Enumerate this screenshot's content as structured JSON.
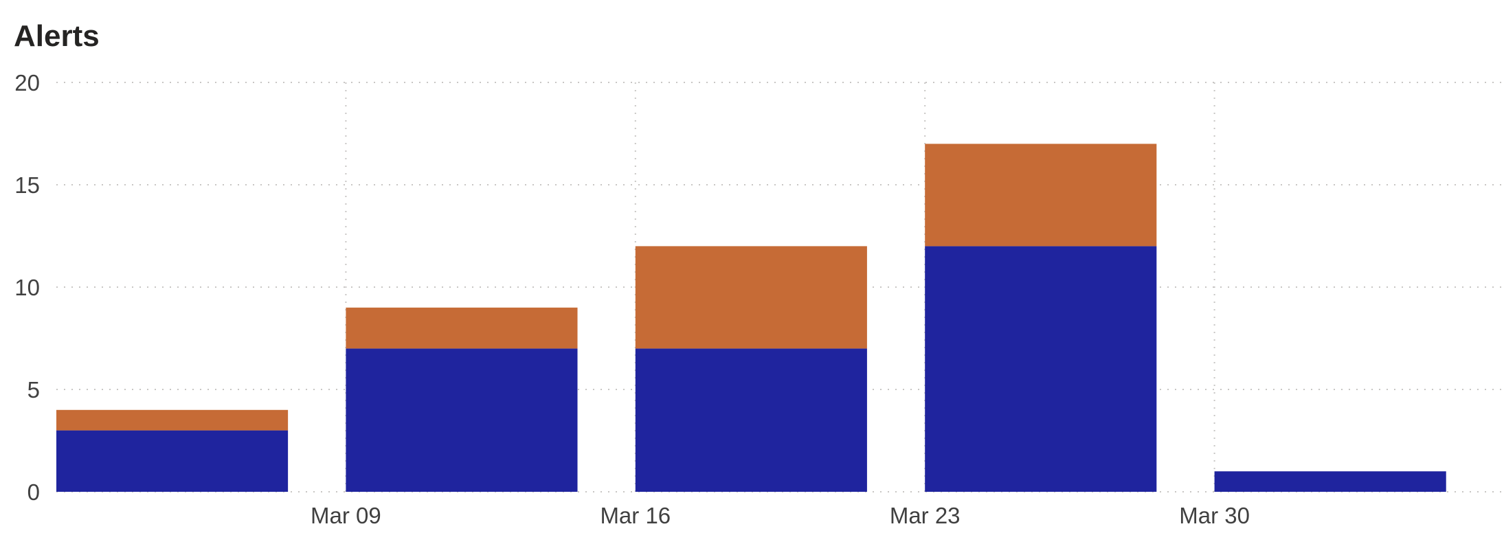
{
  "widget": {
    "title": "Alerts"
  },
  "chart_data": {
    "type": "bar",
    "stacked": true,
    "title": "Alerts",
    "xlabel": "",
    "ylabel": "",
    "x_axis": "date",
    "bins": [
      {
        "start": "2025-03-02",
        "end": "2025-03-09",
        "label": ""
      },
      {
        "start": "2025-03-09",
        "end": "2025-03-16",
        "label": "Mar 09"
      },
      {
        "start": "2025-03-16",
        "end": "2025-03-23",
        "label": "Mar 16"
      },
      {
        "start": "2025-03-23",
        "end": "2025-03-30",
        "label": "Mar 23"
      },
      {
        "start": "2025-03-30",
        "end": "2025-04-06",
        "label": "Mar 30"
      }
    ],
    "x_ticks": [
      "Mar 09",
      "Mar 16",
      "Mar 23",
      "Mar 30"
    ],
    "series": [
      {
        "color": "#1f249e",
        "values": [
          3,
          7,
          7,
          12,
          1
        ]
      },
      {
        "color": "#c66b36",
        "values": [
          1,
          2,
          5,
          5,
          0
        ]
      }
    ],
    "ylim": [
      0,
      20
    ],
    "y_ticks": [
      0,
      5,
      10,
      15,
      20
    ],
    "grid": true,
    "legend": "none"
  }
}
